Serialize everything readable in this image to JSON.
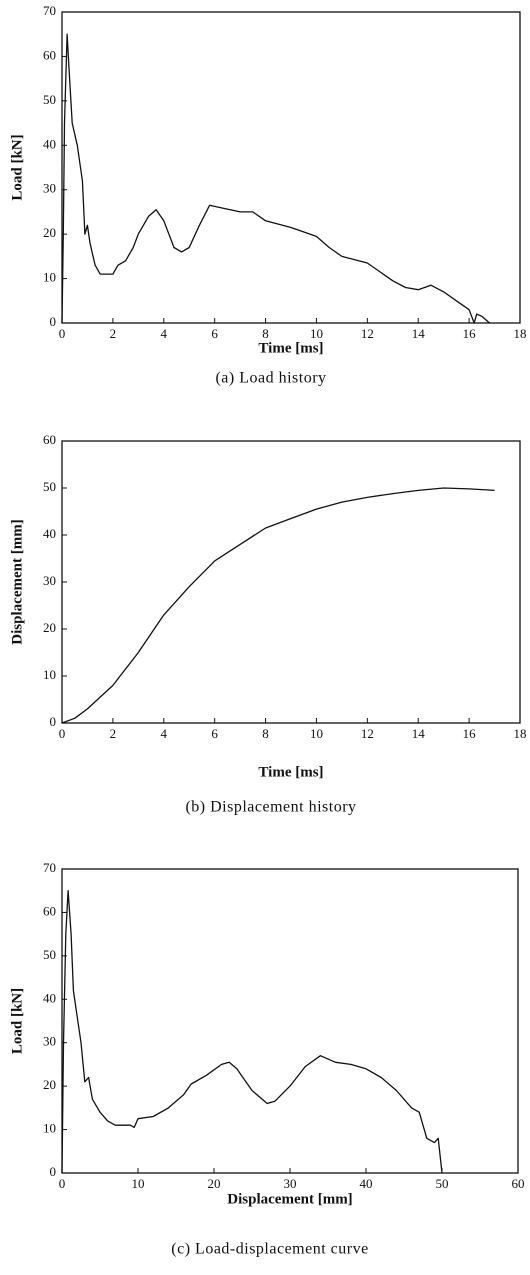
{
  "chart_data": [
    {
      "type": "line",
      "xlabel": "Time [ms]",
      "ylabel": "Load [kN]",
      "caption": "(a) Load history",
      "color": "#111111",
      "xlim": [
        0,
        18
      ],
      "xticks": [
        0,
        2,
        4,
        6,
        8,
        10,
        12,
        14,
        16,
        18
      ],
      "ylim": [
        0,
        70
      ],
      "yticks": [
        0,
        10,
        20,
        30,
        40,
        50,
        60,
        70
      ],
      "x": [
        0,
        0.05,
        0.1,
        0.2,
        0.3,
        0.4,
        0.6,
        0.8,
        0.9,
        1.0,
        1.1,
        1.3,
        1.5,
        1.8,
        2.0,
        2.2,
        2.5,
        2.8,
        3.0,
        3.4,
        3.7,
        4.0,
        4.4,
        4.7,
        5.0,
        5.4,
        5.8,
        6.2,
        7.0,
        7.5,
        8.0,
        9.0,
        10.0,
        10.5,
        11.0,
        12.0,
        13.0,
        13.5,
        14.0,
        14.5,
        15.0,
        15.5,
        16.0,
        16.2,
        16.3,
        16.5,
        16.8
      ],
      "values": [
        0,
        20,
        45,
        65,
        55,
        45,
        40,
        32,
        20,
        22,
        18,
        13,
        11,
        11,
        11,
        13,
        14,
        17,
        20,
        24,
        25.5,
        23,
        17,
        16,
        17,
        22,
        26.5,
        26,
        25,
        25,
        23,
        21.5,
        19.5,
        17,
        15,
        13.5,
        9.5,
        8,
        7.5,
        8.5,
        7,
        5,
        3,
        0,
        2,
        1.5,
        0
      ]
    },
    {
      "type": "line",
      "xlabel": "Time [ms]",
      "ylabel": "Displacement [mm]",
      "caption": "(b) Displacement history",
      "color": "#111111",
      "xlim": [
        0,
        18
      ],
      "xticks": [
        0,
        2,
        4,
        6,
        8,
        10,
        12,
        14,
        16,
        18
      ],
      "ylim": [
        0,
        60
      ],
      "yticks": [
        0,
        10,
        20,
        30,
        40,
        50,
        60
      ],
      "x": [
        0,
        0.5,
        1,
        2,
        3,
        4,
        5,
        6,
        7,
        8,
        9,
        10,
        11,
        12,
        13,
        14,
        15,
        16,
        17
      ],
      "values": [
        0,
        1,
        3,
        8,
        15,
        23,
        29,
        34.5,
        38,
        41.5,
        43.5,
        45.5,
        47,
        48,
        48.8,
        49.5,
        50,
        49.8,
        49.5
      ]
    },
    {
      "type": "line",
      "xlabel": "Displacement [mm]",
      "ylabel": "Load [kN]",
      "caption": "(c) Load-displacement curve",
      "color": "#111111",
      "xlim": [
        0,
        60
      ],
      "xticks": [
        0,
        10,
        20,
        30,
        40,
        50,
        60
      ],
      "ylim": [
        0,
        70
      ],
      "yticks": [
        0,
        10,
        20,
        30,
        40,
        50,
        60,
        70
      ],
      "x": [
        0,
        0.2,
        0.5,
        0.8,
        1.2,
        1.5,
        2,
        2.5,
        3,
        3.5,
        4,
        5,
        6,
        7,
        8,
        9,
        9.5,
        10,
        12,
        14,
        16,
        17,
        19,
        21,
        22,
        23,
        25,
        27,
        28,
        30,
        32,
        34,
        36,
        38,
        40,
        42,
        44,
        46,
        47,
        48,
        49,
        49.5,
        50
      ],
      "values": [
        0,
        30,
        55,
        65,
        55,
        42,
        36,
        30,
        21,
        22,
        17,
        14,
        12,
        11,
        11,
        11,
        10.5,
        12.5,
        13,
        15,
        18,
        20.5,
        22.5,
        25,
        25.5,
        24,
        19,
        16,
        16.5,
        20,
        24.5,
        27,
        25.5,
        25,
        24,
        22,
        19,
        15,
        14,
        8,
        7,
        8,
        0
      ]
    }
  ]
}
